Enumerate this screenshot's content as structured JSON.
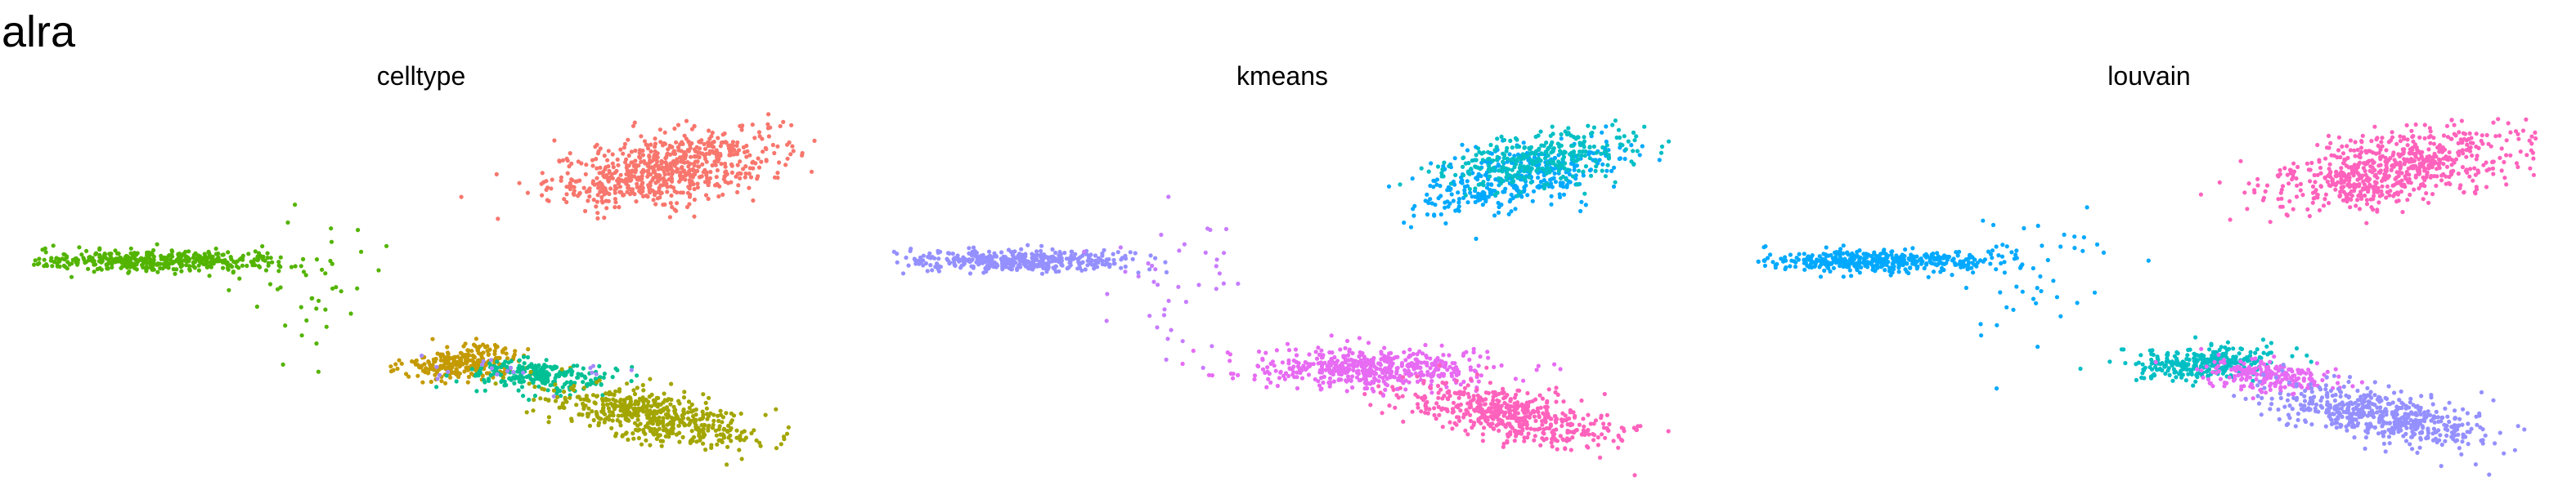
{
  "title": "alra",
  "chart_data": [
    {
      "type": "scatter",
      "title": "celltype",
      "xlabel": "",
      "ylabel": "",
      "grid": false,
      "legend": "none",
      "series": [
        {
          "color": "#F8766D",
          "clusters": [
            {
              "cx": 3.2,
              "cy": 3.0,
              "sx": 0.9,
              "sy": 0.45,
              "rho": 0.5,
              "n": 700
            }
          ]
        },
        {
          "color": "#53B400",
          "clusters": [
            {
              "cx": -4.6,
              "cy": 0.9,
              "sx": 1.0,
              "sy": 0.12,
              "rho": 0.0,
              "n": 420
            },
            {
              "cx": -2.2,
              "cy": 0.4,
              "sx": 0.6,
              "sy": 0.9,
              "rho": 0.0,
              "n": 40
            }
          ]
        },
        {
          "color": "#C49A00",
          "clusters": [
            {
              "cx": 0.1,
              "cy": -1.4,
              "sx": 0.45,
              "sy": 0.18,
              "rho": 0.2,
              "n": 260
            }
          ]
        },
        {
          "color": "#00C094",
          "clusters": [
            {
              "cx": 1.3,
              "cy": -1.7,
              "sx": 0.55,
              "sy": 0.18,
              "rho": -0.3,
              "n": 240
            }
          ]
        },
        {
          "color": "#A58AFF",
          "clusters": [
            {
              "cx": 1.0,
              "cy": -1.55,
              "sx": 0.8,
              "sy": 0.2,
              "rho": 0.0,
              "n": 20
            }
          ]
        },
        {
          "color": "#A3A500",
          "clusters": [
            {
              "cx": 3.0,
              "cy": -2.6,
              "sx": 0.8,
              "sy": 0.35,
              "rho": -0.6,
              "n": 520
            }
          ]
        }
      ]
    },
    {
      "type": "scatter",
      "title": "kmeans",
      "xlabel": "",
      "ylabel": "",
      "grid": false,
      "legend": "none",
      "series": [
        {
          "color": "#00A9FF",
          "clusters": [
            {
              "cx": 3.1,
              "cy": 2.8,
              "sx": 0.8,
              "sy": 0.4,
              "rho": 0.5,
              "n": 380
            }
          ]
        },
        {
          "color": "#00BFC4",
          "clusters": [
            {
              "cx": 3.4,
              "cy": 3.2,
              "sx": 0.7,
              "sy": 0.35,
              "rho": 0.5,
              "n": 320
            }
          ]
        },
        {
          "color": "#9590FF",
          "clusters": [
            {
              "cx": -4.6,
              "cy": 0.9,
              "sx": 1.0,
              "sy": 0.12,
              "rho": 0.0,
              "n": 420
            }
          ]
        },
        {
          "color": "#C77CFF",
          "clusters": [
            {
              "cx": -2.2,
              "cy": 0.4,
              "sx": 0.7,
              "sy": 0.9,
              "rho": 0.0,
              "n": 40
            }
          ]
        },
        {
          "color": "#E76BF3",
          "clusters": [
            {
              "cx": 0.8,
              "cy": -1.5,
              "sx": 0.9,
              "sy": 0.22,
              "rho": -0.1,
              "n": 520
            }
          ]
        },
        {
          "color": "#FF62BC",
          "clusters": [
            {
              "cx": 3.0,
              "cy": -2.6,
              "sx": 0.8,
              "sy": 0.35,
              "rho": -0.6,
              "n": 520
            }
          ]
        }
      ]
    },
    {
      "type": "scatter",
      "title": "louvain",
      "xlabel": "",
      "ylabel": "",
      "grid": false,
      "legend": "none",
      "series": [
        {
          "color": "#FF62BC",
          "clusters": [
            {
              "cx": 3.2,
              "cy": 3.0,
              "sx": 0.9,
              "sy": 0.45,
              "rho": 0.5,
              "n": 700
            }
          ]
        },
        {
          "color": "#00A9FF",
          "clusters": [
            {
              "cx": -4.6,
              "cy": 0.9,
              "sx": 1.0,
              "sy": 0.12,
              "rho": 0.0,
              "n": 420
            },
            {
              "cx": -2.2,
              "cy": 0.4,
              "sx": 0.6,
              "sy": 0.9,
              "rho": 0.0,
              "n": 40
            }
          ]
        },
        {
          "color": "#00BFC4",
          "clusters": [
            {
              "cx": 0.3,
              "cy": -1.4,
              "sx": 0.55,
              "sy": 0.18,
              "rho": 0.2,
              "n": 300
            }
          ]
        },
        {
          "color": "#E76BF3",
          "clusters": [
            {
              "cx": 1.3,
              "cy": -1.7,
              "sx": 0.5,
              "sy": 0.18,
              "rho": -0.3,
              "n": 220
            }
          ]
        },
        {
          "color": "#9590FF",
          "clusters": [
            {
              "cx": 3.0,
              "cy": -2.6,
              "sx": 0.8,
              "sy": 0.35,
              "rho": -0.6,
              "n": 520
            }
          ]
        }
      ],
      "xlim": [
        -6.5,
        5.5
      ],
      "ylim": [
        -4.0,
        4.5
      ]
    }
  ]
}
